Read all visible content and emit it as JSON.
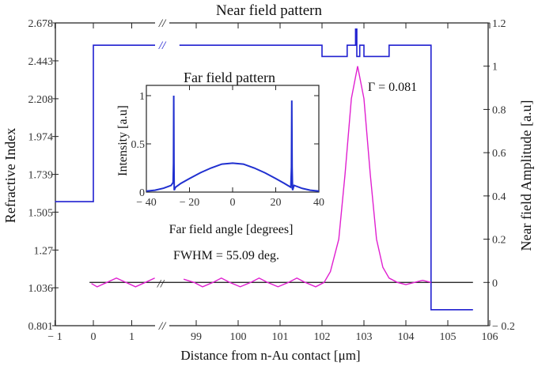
{
  "chart_data": [
    {
      "type": "line",
      "title": "Near field pattern",
      "xlabel": "Distance from n-Au contact [μm]",
      "ylabel": "Refractive Index",
      "y2label": "Near field Amplitude [a.u]",
      "x_axis_break": "//",
      "x_ticks": [
        "− 1",
        "0",
        "1",
        "99",
        "100",
        "101",
        "102",
        "103",
        "104",
        "105",
        "106"
      ],
      "x_tick_values": [
        -1,
        0,
        1,
        99,
        100,
        101,
        102,
        103,
        104,
        105,
        106
      ],
      "y_ticks": [
        "2.678",
        "2.443",
        "2.208",
        "1.974",
        "1.739",
        "1.505",
        "1.27",
        "1.036",
        "0.801"
      ],
      "y_tick_values": [
        2.678,
        2.443,
        2.208,
        1.974,
        1.739,
        1.505,
        1.27,
        1.036,
        0.801
      ],
      "y2_ticks": [
        "1.2",
        "1",
        "0.8",
        "0.6",
        "0.4",
        "0.2",
        "0",
        "− 0.2"
      ],
      "y2_tick_values": [
        1.2,
        1,
        0.8,
        0.6,
        0.4,
        0.2,
        0,
        -0.2
      ],
      "ylim": [
        0.801,
        2.678
      ],
      "y2lim": [
        -0.2,
        1.2
      ],
      "annotation": "Γ = 0.081",
      "series": [
        {
          "axis": "left",
          "color": "#2020d0",
          "points": [
            [
              -1,
              1.57
            ],
            [
              0,
              1.57
            ],
            [
              0,
              2.54
            ],
            [
              102,
              2.54
            ],
            [
              102,
              2.47
            ],
            [
              102.6,
              2.47
            ],
            [
              102.6,
              2.54
            ],
            [
              102.8,
              2.54
            ],
            [
              102.8,
              2.64
            ],
            [
              102.83,
              2.64
            ],
            [
              102.83,
              2.47
            ],
            [
              102.9,
              2.47
            ],
            [
              102.9,
              2.54
            ],
            [
              103.0,
              2.54
            ],
            [
              103.0,
              2.47
            ],
            [
              103.6,
              2.47
            ],
            [
              103.6,
              2.54
            ],
            [
              104.6,
              2.54
            ],
            [
              104.6,
              0.9
            ],
            [
              105.6,
              0.9
            ]
          ]
        },
        {
          "axis": "right",
          "color": "#e020d0",
          "points": [
            [
              -0.05,
              -0.005
            ],
            [
              0.1,
              -0.02
            ],
            [
              0.35,
              0
            ],
            [
              0.6,
              0.02
            ],
            [
              0.85,
              0
            ],
            [
              1.1,
              -0.02
            ],
            [
              1.35,
              0
            ],
            [
              1.6,
              0.02
            ],
            [
              98.7,
              0.015
            ],
            [
              98.95,
              0
            ],
            [
              99.15,
              -0.02
            ],
            [
              99.4,
              0
            ],
            [
              99.6,
              0.02
            ],
            [
              99.8,
              0
            ],
            [
              100.05,
              -0.02
            ],
            [
              100.3,
              0
            ],
            [
              100.5,
              0.02
            ],
            [
              100.7,
              0
            ],
            [
              100.95,
              -0.02
            ],
            [
              101.2,
              0
            ],
            [
              101.4,
              0.02
            ],
            [
              101.6,
              0
            ],
            [
              101.85,
              -0.02
            ],
            [
              102.05,
              0
            ],
            [
              102.2,
              0.05
            ],
            [
              102.4,
              0.2
            ],
            [
              102.55,
              0.5
            ],
            [
              102.7,
              0.85
            ],
            [
              102.85,
              1.0
            ],
            [
              103.0,
              0.85
            ],
            [
              103.15,
              0.5
            ],
            [
              103.3,
              0.2
            ],
            [
              103.45,
              0.07
            ],
            [
              103.6,
              0.02
            ],
            [
              103.8,
              0
            ],
            [
              104.0,
              -0.01
            ],
            [
              104.2,
              0
            ],
            [
              104.4,
              0.01
            ],
            [
              104.6,
              0
            ]
          ]
        }
      ],
      "zero_line": 0
    },
    {
      "type": "line",
      "title": "Far field pattern",
      "xlabel": "Far field angle [degrees]",
      "ylabel": "Intensity [a.u]",
      "x_ticks": [
        "− 40",
        "− 20",
        "0",
        "20",
        "40"
      ],
      "x_tick_values": [
        -40,
        -20,
        0,
        20,
        40
      ],
      "y_ticks": [
        "1",
        "0.5",
        "0"
      ],
      "y_tick_values": [
        1,
        0.5,
        0
      ],
      "xlim": [
        -40,
        40
      ],
      "ylim": [
        0,
        1.05
      ],
      "annotation": "FWHM = 55.09 deg.",
      "series": [
        {
          "color": "#2030d0",
          "points": [
            [
              -40,
              0.01
            ],
            [
              -36,
              0.02
            ],
            [
              -32,
              0.04
            ],
            [
              -28.5,
              0.07
            ],
            [
              -27.6,
              0.1
            ],
            [
              -27.4,
              0.3
            ],
            [
              -27.3,
              1.0
            ],
            [
              -27.2,
              0.3
            ],
            [
              -27.1,
              0.02
            ],
            [
              -26.5,
              0.05
            ],
            [
              -24,
              0.09
            ],
            [
              -20,
              0.14
            ],
            [
              -15,
              0.2
            ],
            [
              -10,
              0.25
            ],
            [
              -5,
              0.29
            ],
            [
              0,
              0.3
            ],
            [
              5,
              0.29
            ],
            [
              10,
              0.25
            ],
            [
              15,
              0.2
            ],
            [
              20,
              0.14
            ],
            [
              24,
              0.09
            ],
            [
              27.0,
              0.05
            ],
            [
              27.3,
              0.26
            ],
            [
              27.45,
              0.95
            ],
            [
              27.6,
              0.26
            ],
            [
              27.8,
              0.02
            ],
            [
              28.5,
              0.07
            ],
            [
              32,
              0.04
            ],
            [
              36,
              0.02
            ],
            [
              40,
              0.01
            ]
          ]
        }
      ]
    }
  ]
}
